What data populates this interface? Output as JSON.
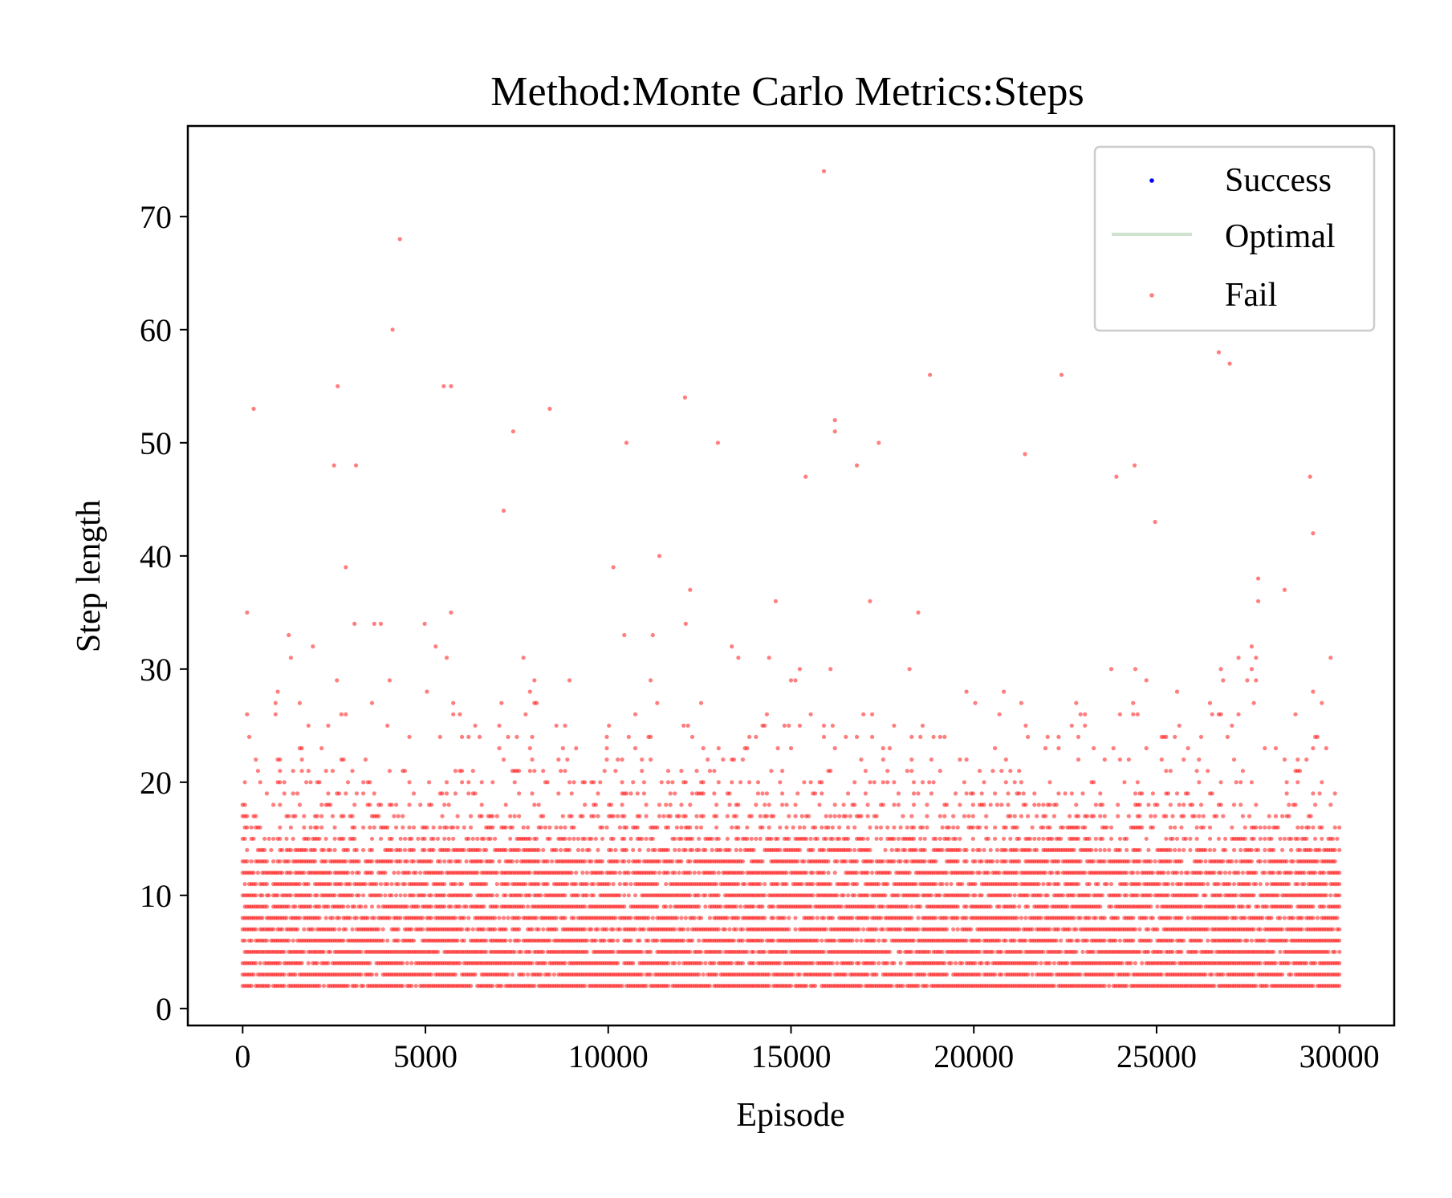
{
  "chart_data": {
    "type": "scatter",
    "title": "Method:Monte Carlo   Metrics:Steps",
    "xlabel": "Episode",
    "ylabel": "Step length",
    "xlim": [
      -1500,
      31500
    ],
    "ylim": [
      -1.5,
      78
    ],
    "xticks": [
      0,
      5000,
      10000,
      15000,
      20000,
      25000,
      30000
    ],
    "yticks": [
      0,
      10,
      20,
      30,
      40,
      50,
      60,
      70
    ],
    "grid": false,
    "legend_position": "top-right",
    "legend": [
      {
        "label": "Success",
        "marker": "dot",
        "color": "#0000ff"
      },
      {
        "label": "Optimal",
        "marker": "line",
        "color": "#cfe3cf"
      },
      {
        "label": "Fail",
        "marker": "dot",
        "color": "#ff0000"
      }
    ],
    "series": [
      {
        "name": "Fail",
        "color": "#ff0000",
        "alpha": 0.5,
        "episode_range": [
          0,
          30000
        ],
        "dense_band_range": [
          2,
          12
        ],
        "outliers": [
          {
            "x": 300,
            "y": 53
          },
          {
            "x": 4100,
            "y": 60
          },
          {
            "x": 4300,
            "y": 68
          },
          {
            "x": 2600,
            "y": 55
          },
          {
            "x": 5500,
            "y": 55
          },
          {
            "x": 5700,
            "y": 55
          },
          {
            "x": 7400,
            "y": 51
          },
          {
            "x": 8400,
            "y": 53
          },
          {
            "x": 10500,
            "y": 50
          },
          {
            "x": 12100,
            "y": 54
          },
          {
            "x": 13000,
            "y": 50
          },
          {
            "x": 15900,
            "y": 74
          },
          {
            "x": 16200,
            "y": 52
          },
          {
            "x": 16200,
            "y": 51
          },
          {
            "x": 17400,
            "y": 50
          },
          {
            "x": 18800,
            "y": 56
          },
          {
            "x": 22400,
            "y": 56
          },
          {
            "x": 26700,
            "y": 58
          },
          {
            "x": 27000,
            "y": 57
          },
          {
            "x": 15400,
            "y": 47
          },
          {
            "x": 2500,
            "y": 48
          },
          {
            "x": 3100,
            "y": 48
          },
          {
            "x": 24400,
            "y": 48
          },
          {
            "x": 29200,
            "y": 47
          },
          {
            "x": 16800,
            "y": 48
          },
          {
            "x": 21400,
            "y": 49
          },
          {
            "x": 23900,
            "y": 47
          }
        ]
      },
      {
        "name": "Success",
        "color": "#0000ff",
        "points": []
      }
    ]
  }
}
